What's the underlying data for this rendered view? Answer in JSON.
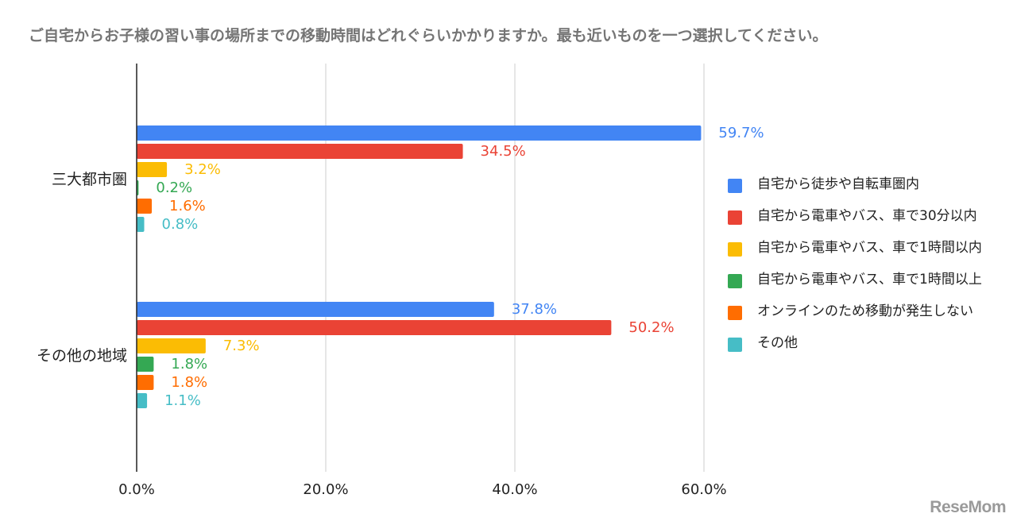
{
  "title": "ご自宅からお子様の習い事の場所までの移動時間はどれぐらいかかりますか。最も近いものを一つ選択してください。",
  "logo": "ReseMom",
  "chart_data": {
    "type": "bar",
    "orientation": "horizontal",
    "title": "ご自宅からお子様の習い事の場所までの移動時間はどれぐらいかかりますか。最も近いものを一つ選択してください。",
    "categories": [
      "三大都市圏",
      "その他の地域"
    ],
    "series": [
      {
        "name": "自宅から徒歩や自転車圏内",
        "color": "#4285F4",
        "values": [
          59.7,
          37.8
        ]
      },
      {
        "name": "自宅から電車やバス、車で30分以内",
        "color": "#EA4335",
        "values": [
          34.5,
          50.2
        ]
      },
      {
        "name": "自宅から電車やバス、車で1時間以内",
        "color": "#FBBC04",
        "values": [
          3.2,
          7.3
        ]
      },
      {
        "name": "自宅から電車やバス、車で1時間以上",
        "color": "#34A853",
        "values": [
          0.2,
          1.8
        ]
      },
      {
        "name": "オンラインのため移動が発生しない",
        "color": "#FF6D01",
        "values": [
          1.6,
          1.8
        ]
      },
      {
        "name": "その他",
        "color": "#46BDC6",
        "values": [
          0.8,
          1.1
        ]
      }
    ],
    "data_labels": [
      [
        "59.7%",
        "37.8%"
      ],
      [
        "34.5%",
        "50.2%"
      ],
      [
        "3.2%",
        "7.3%"
      ],
      [
        "0.2%",
        "1.8%"
      ],
      [
        "1.6%",
        "1.8%"
      ],
      [
        "0.8%",
        "1.1%"
      ]
    ],
    "x_ticks": [
      "0.0%",
      "20.0%",
      "40.0%",
      "60.0%"
    ],
    "x_tick_values": [
      0,
      20,
      40,
      60
    ],
    "xlim": [
      0,
      60
    ],
    "grid": true,
    "legend_position": "right"
  }
}
